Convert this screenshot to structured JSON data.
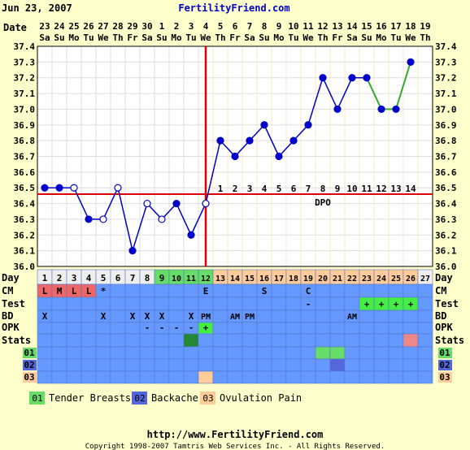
{
  "header": {
    "date": "Jun 23, 2007",
    "site": "FertilityFriend.com"
  },
  "footer": {
    "url": "http://www.FertilityFriend.com",
    "copyright": "Copyright 1998-2007 Tamtris Web Services Inc. - All Rights Reserved."
  },
  "labels": {
    "date": "Date",
    "day": "Day",
    "cm": "CM",
    "test": "Test",
    "bd": "BD",
    "opk": "OPK",
    "stats": "Stats",
    "dpo": "DPO",
    "legend_01": "01",
    "legend_02": "02",
    "legend_03": "03"
  },
  "colors": {
    "background": "#ffffcc",
    "line_pre": "#0000cc",
    "line_post_tail": "#33aa33",
    "coverline": "#dd0000",
    "ovulation": "#dd0000",
    "grid_pre": "#dddddd",
    "grid_post": "#ffe6c0",
    "row_bg": "#6699ff",
    "day_fertile": "#66dd66",
    "day_luteal": "#ffcc99",
    "cm_red": "#ee6666",
    "opk_pos": "#44ee44",
    "stats_green": "#228833",
    "stats_pink": "#ee8888",
    "sym_01": "#66dd66",
    "sym_02": "#5566dd",
    "sym_03": "#ffcc99"
  },
  "legend": [
    {
      "code": "01",
      "label": "Tender Breasts",
      "color": "#66dd66"
    },
    {
      "code": "02",
      "label": "Backache",
      "color": "#5566dd"
    },
    {
      "code": "03",
      "label": "Ovulation Pain",
      "color": "#ffcc99"
    }
  ],
  "chart_data": {
    "type": "line",
    "ylim": [
      36.0,
      37.4
    ],
    "yticks": [
      "36.0",
      "36.1",
      "36.2",
      "36.3",
      "36.4",
      "36.5",
      "36.6",
      "36.7",
      "36.8",
      "36.9",
      "37.0",
      "37.1",
      "37.2",
      "37.3",
      "37.4"
    ],
    "dates": [
      "23",
      "24",
      "25",
      "26",
      "27",
      "28",
      "29",
      "30",
      "1",
      "2",
      "3",
      "4",
      "5",
      "6",
      "7",
      "8",
      "9",
      "10",
      "11",
      "12",
      "13",
      "14",
      "15",
      "16",
      "17",
      "18",
      "19"
    ],
    "weekdays": [
      "Sa",
      "Su",
      "Mo",
      "Tu",
      "We",
      "Th",
      "Fr",
      "Sa",
      "Su",
      "Mo",
      "Tu",
      "We",
      "Th",
      "Fr",
      "Sa",
      "Su",
      "Mo",
      "Tu",
      "We",
      "Th",
      "Fr",
      "Sa",
      "Su",
      "Mo",
      "Tu",
      "We",
      "Th"
    ],
    "cycle_days": [
      "1",
      "2",
      "3",
      "4",
      "5",
      "6",
      "7",
      "8",
      "9",
      "10",
      "11",
      "12",
      "13",
      "14",
      "15",
      "16",
      "17",
      "18",
      "19",
      "20",
      "21",
      "22",
      "23",
      "24",
      "25",
      "26",
      "27"
    ],
    "temps": [
      36.5,
      36.5,
      36.5,
      36.3,
      36.3,
      36.5,
      36.1,
      36.4,
      36.3,
      36.4,
      36.2,
      36.4,
      36.8,
      36.7,
      36.8,
      36.9,
      36.7,
      36.8,
      36.9,
      37.2,
      37.0,
      37.2,
      37.2,
      37.0,
      37.0,
      37.3,
      null
    ],
    "open_points": [
      2,
      4,
      5,
      7,
      8,
      11
    ],
    "tail_start_index": 22,
    "coverline": 36.46,
    "ovulation_day_index": 11,
    "dpo_start_index": 12,
    "dpo": [
      "1",
      "2",
      "3",
      "4",
      "5",
      "6",
      "7",
      "8",
      "9",
      "10",
      "11",
      "12",
      "13",
      "14"
    ],
    "cm": [
      "L",
      "M",
      "L",
      "L",
      "*",
      "",
      "",
      "",
      "",
      "",
      "",
      "E",
      "",
      "",
      "",
      "S",
      "",
      "",
      "C",
      "",
      "",
      "",
      "",
      "",
      "",
      "",
      ""
    ],
    "cm_red_days": [
      0,
      1,
      2,
      3
    ],
    "test": [
      "",
      "",
      "",
      "",
      "",
      "",
      "",
      "",
      "",
      "",
      "",
      "",
      "",
      "",
      "",
      "",
      "",
      "",
      "-",
      "",
      "",
      "",
      "+",
      "+",
      "+",
      "+",
      ""
    ],
    "bd": [
      "X",
      "",
      "",
      "",
      "X",
      "",
      "X",
      "X",
      "X",
      "",
      "X",
      "PM",
      "",
      "AM",
      "PM",
      "",
      "",
      "",
      "",
      "",
      "",
      "AM",
      "",
      "",
      "",
      "",
      ""
    ],
    "opk": [
      "",
      "",
      "",
      "",
      "",
      "",
      "",
      "-",
      "-",
      "-",
      "-",
      "+",
      "",
      "",
      "",
      "",
      "",
      "",
      "",
      "",
      "",
      "",
      "",
      "",
      "",
      "",
      ""
    ],
    "stats_cells": [
      {
        "day": 10,
        "color": "#228833"
      },
      {
        "day": 25,
        "color": "#ee8888"
      }
    ],
    "sym_01_days": [
      19,
      20
    ],
    "sym_02_days": [
      20
    ],
    "sym_03_days": [
      11
    ],
    "fertile_days": [
      8,
      9,
      10,
      11
    ]
  }
}
